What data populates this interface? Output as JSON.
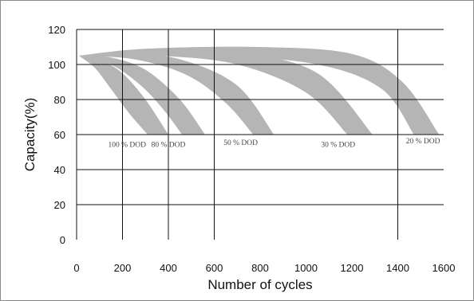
{
  "chart_data": {
    "type": "area",
    "xlabel": "Number of cycles",
    "ylabel": "Capacity(%)",
    "xlim": [
      0,
      1600
    ],
    "ylim": [
      0,
      120
    ],
    "x_ticks": [
      "0",
      "200",
      "400",
      "600",
      "800",
      "1000",
      "1200",
      "1400",
      "1600"
    ],
    "y_ticks": [
      "0",
      "20",
      "40",
      "60",
      "80",
      "100",
      "120"
    ],
    "x_grid": [
      200,
      400,
      600,
      1400
    ],
    "y_grid": [
      20,
      40,
      60,
      80,
      100,
      120
    ],
    "band_color": "#b5b5b5",
    "start": {
      "x": 10,
      "y": 105
    },
    "series": [
      {
        "name": "100%DOD",
        "label": "100 % DOD",
        "label_x": 220,
        "label_y": 53,
        "upper": [
          [
            10,
            105
          ],
          [
            100,
            103
          ],
          [
            200,
            95
          ],
          [
            300,
            80
          ],
          [
            400,
            60
          ]
        ],
        "lower": [
          [
            310,
            60
          ],
          [
            230,
            72
          ],
          [
            150,
            86
          ],
          [
            80,
            98
          ],
          [
            10,
            105
          ]
        ]
      },
      {
        "name": "80%DOD",
        "label": "80 % DOD",
        "label_x": 400,
        "label_y": 53,
        "upper": [
          [
            10,
            105
          ],
          [
            150,
            104
          ],
          [
            300,
            97
          ],
          [
            450,
            80
          ],
          [
            560,
            60
          ]
        ],
        "lower": [
          [
            460,
            60
          ],
          [
            380,
            74
          ],
          [
            280,
            88
          ],
          [
            150,
            100
          ],
          [
            10,
            105
          ]
        ]
      },
      {
        "name": "50%DOD",
        "label": "50 % DOD",
        "label_x": 715,
        "label_y": 54,
        "upper": [
          [
            10,
            105
          ],
          [
            200,
            106
          ],
          [
            450,
            103
          ],
          [
            700,
            88
          ],
          [
            860,
            60
          ]
        ],
        "lower": [
          [
            770,
            60
          ],
          [
            650,
            78
          ],
          [
            480,
            94
          ],
          [
            250,
            103
          ],
          [
            10,
            105
          ]
        ]
      },
      {
        "name": "30%DOD",
        "label": "30 % DOD",
        "label_x": 1140,
        "label_y": 53,
        "upper": [
          [
            10,
            105
          ],
          [
            300,
            108
          ],
          [
            700,
            107
          ],
          [
            1050,
            95
          ],
          [
            1290,
            60
          ]
        ],
        "lower": [
          [
            1180,
            60
          ],
          [
            1000,
            84
          ],
          [
            700,
            100
          ],
          [
            350,
            105
          ],
          [
            10,
            105
          ]
        ]
      },
      {
        "name": "20%DOD",
        "label": "20 % DOD",
        "label_x": 1510,
        "label_y": 55,
        "upper": [
          [
            10,
            105
          ],
          [
            300,
            109
          ],
          [
            800,
            110
          ],
          [
            1200,
            106
          ],
          [
            1420,
            90
          ],
          [
            1580,
            60
          ]
        ],
        "lower": [
          [
            1470,
            60
          ],
          [
            1330,
            86
          ],
          [
            1050,
            100
          ],
          [
            600,
            105
          ],
          [
            10,
            105
          ]
        ]
      }
    ]
  }
}
